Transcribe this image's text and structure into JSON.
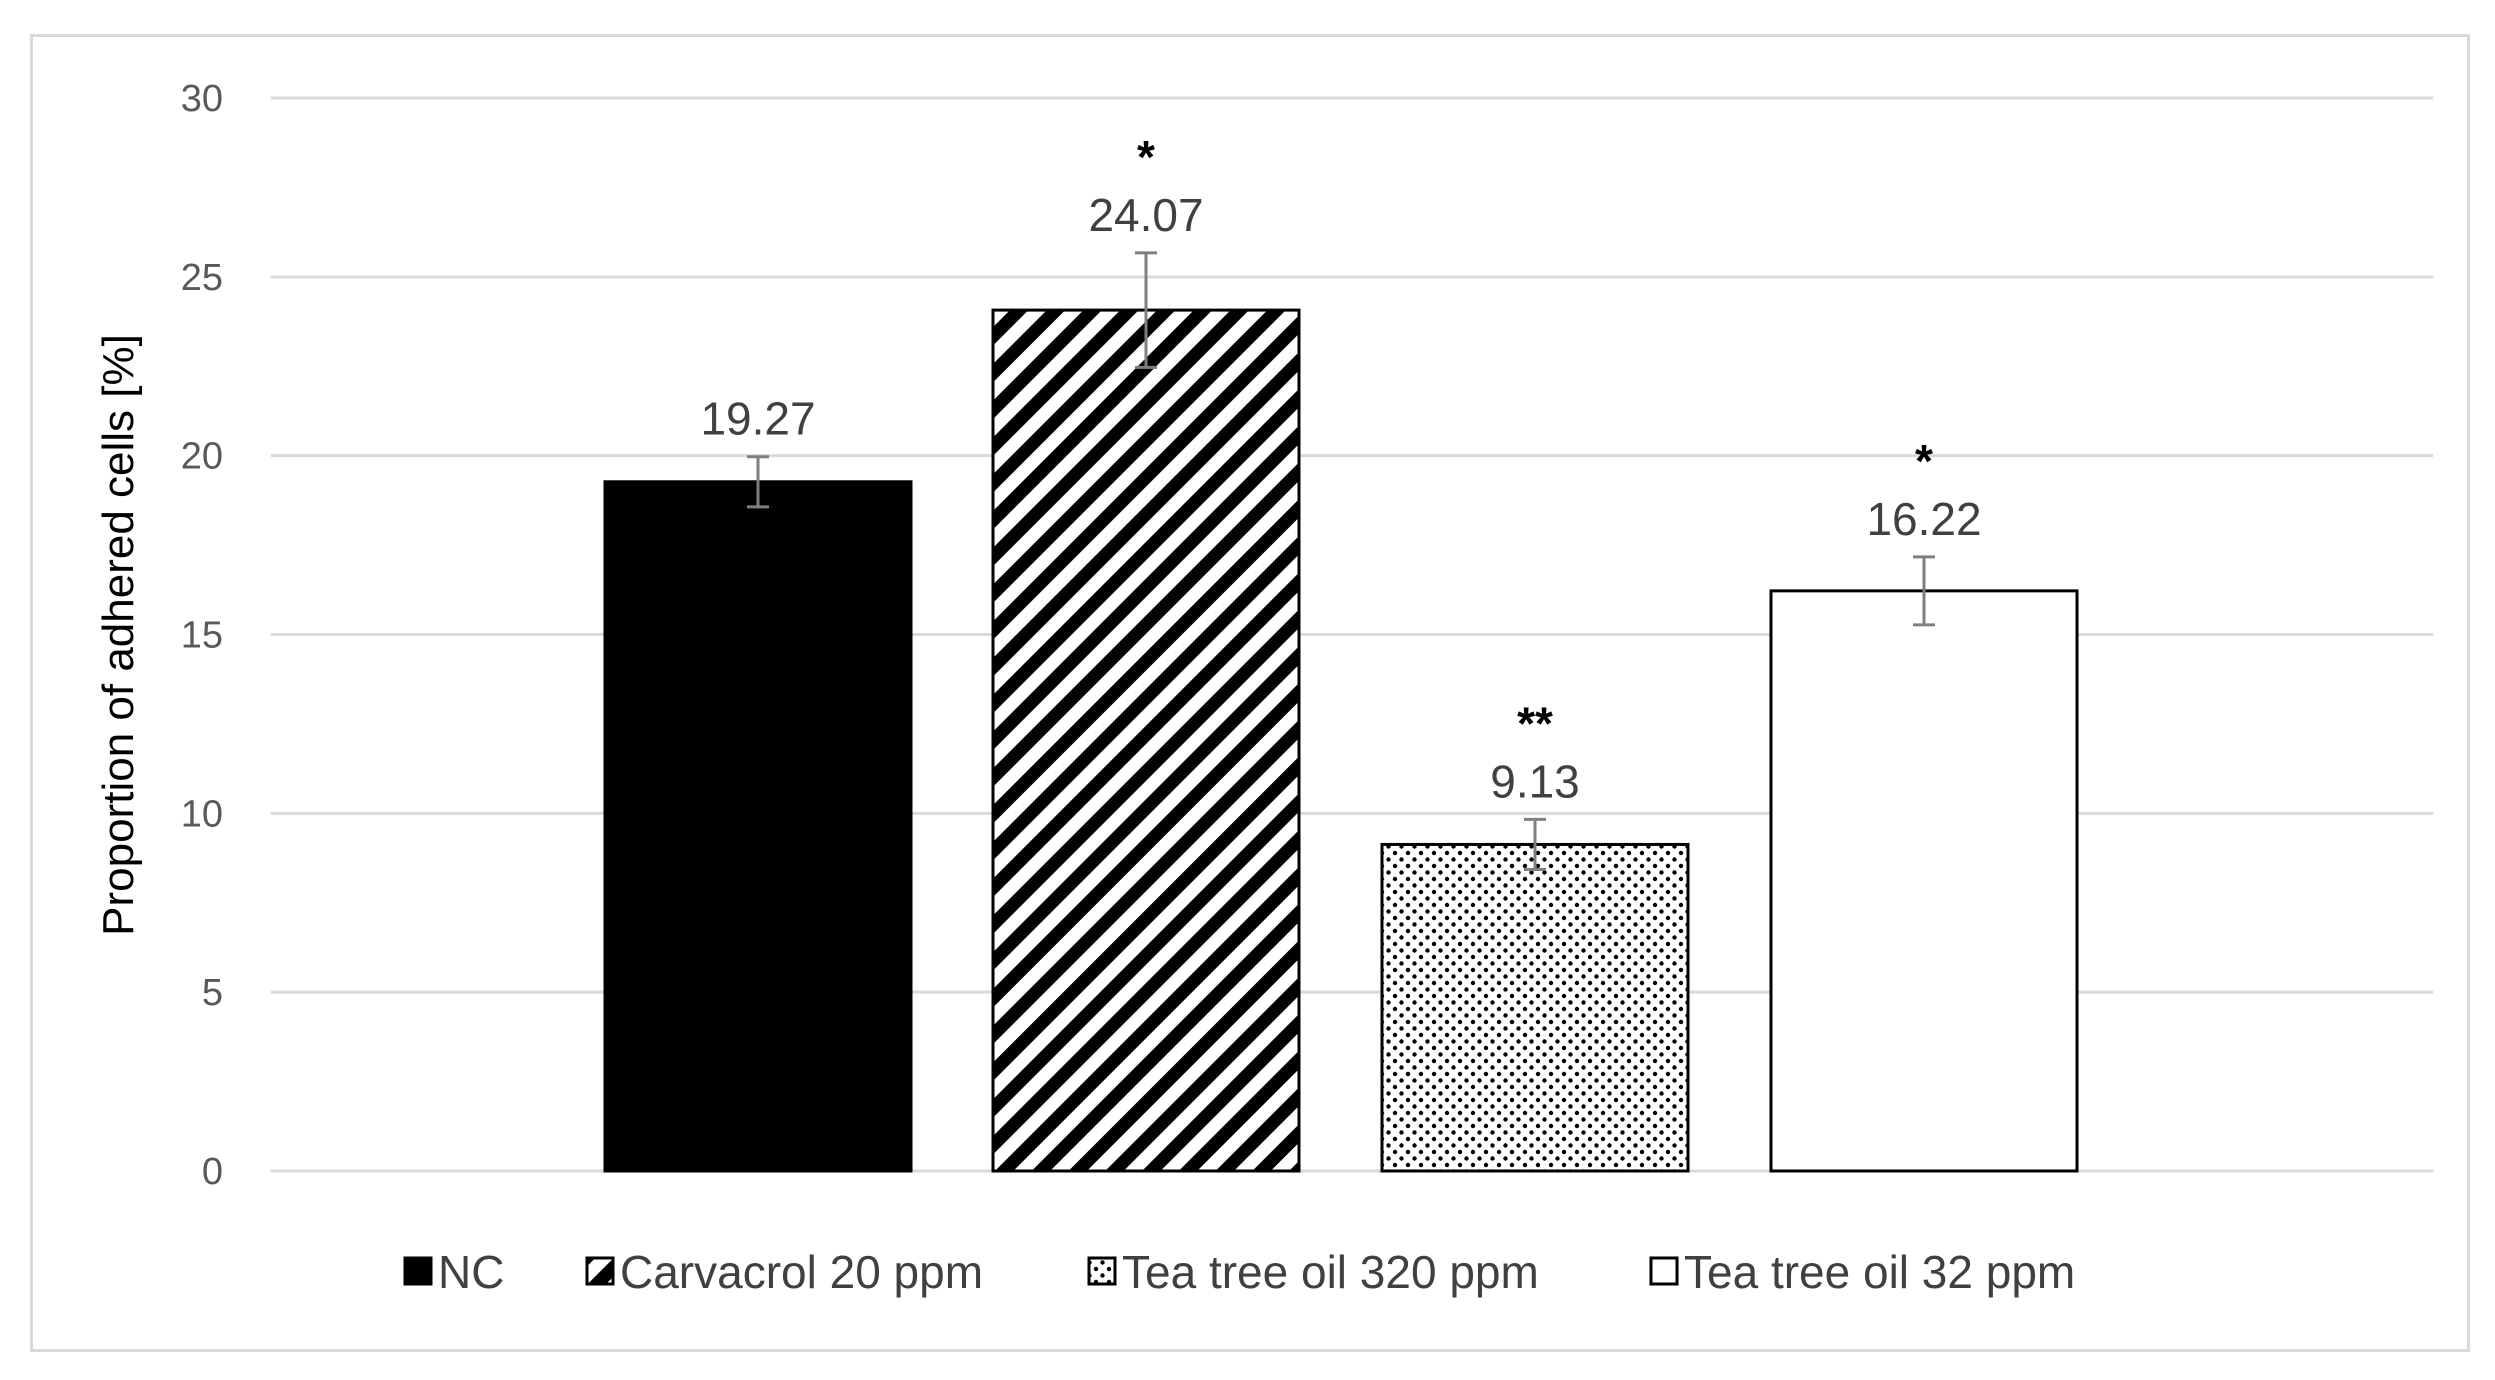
{
  "chart_data": {
    "type": "bar",
    "title": "",
    "xlabel": "",
    "ylabel": "Proportion of adhered cells [%]",
    "ylim": [
      0,
      30
    ],
    "yticks": [
      0,
      5,
      10,
      15,
      20,
      25,
      30
    ],
    "grid": true,
    "legend_position": "bottom",
    "categories": [
      "NC",
      "Carvacrol 20 ppm",
      "Tea tree oil 320 ppm",
      "Tea tree oil 32 ppm"
    ],
    "values": [
      19.27,
      24.07,
      9.13,
      16.22
    ],
    "value_labels": [
      "19.27",
      "24.07",
      "9.13",
      "16.22"
    ],
    "errors": [
      0.7,
      1.6,
      0.7,
      0.95
    ],
    "significance": [
      "",
      "*",
      "**",
      "*"
    ],
    "fills": [
      "solid-black",
      "diagonal-stripes",
      "dots",
      "white"
    ]
  }
}
